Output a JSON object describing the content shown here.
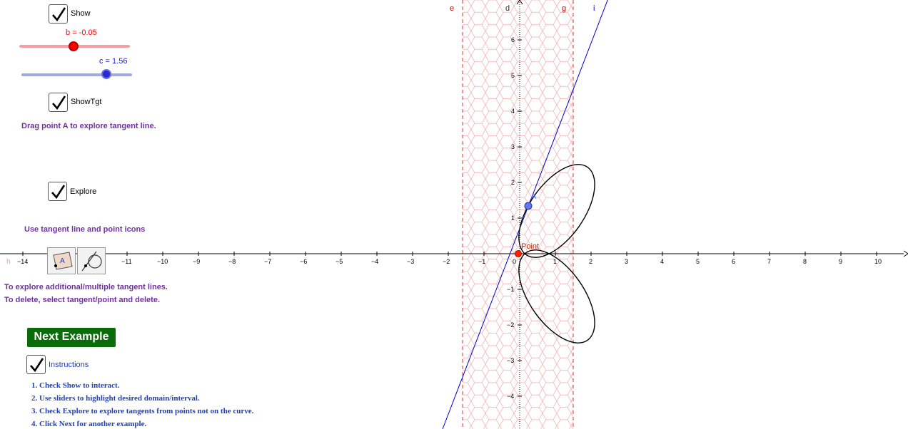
{
  "controls": {
    "show": {
      "label": "Show",
      "checked": true
    },
    "slider_b": {
      "label": "b = -0.05",
      "value": -0.05,
      "color": "#ff0000",
      "track_color": "#f4a0a0"
    },
    "slider_c": {
      "label": "c = 1.56",
      "value": 1.56,
      "color": "#2222cc",
      "track_color": "#a0a8e8"
    },
    "showtgt": {
      "label": "ShowTgt",
      "checked": true
    },
    "drag_hint": "Drag point A to explore tangent line.",
    "explore": {
      "label": "Explore",
      "checked": true
    },
    "icon_hint": "Use tangent line and point icons",
    "tools": [
      "point-tool-icon",
      "tangent-tool-icon"
    ],
    "note_line1": "To explore additional/multiple tangent lines.",
    "note_line2": "To delete, select tangent/point and delete.",
    "next_button": "Next Example",
    "instructions": {
      "label": "Instructions",
      "checked": true
    }
  },
  "instructions_list": [
    "1. Check Show to interact.",
    "2. Use sliders to highlight desired domain/interval.",
    "3. Check Explore to explore tangents from points not on the curve.",
    "4.  Click Next for another example."
  ],
  "graph": {
    "x_ticks": [
      "−14",
      "−11",
      "−10",
      "−9",
      "−8",
      "−7",
      "−6",
      "−5",
      "−4",
      "−3",
      "−2",
      "−1",
      "0",
      "1",
      "2",
      "3",
      "4",
      "5",
      "6",
      "7",
      "8",
      "9",
      "10"
    ],
    "y_ticks_pos": [
      "1",
      "2",
      "3",
      "4",
      "5",
      "6"
    ],
    "y_ticks_neg": [
      "−1",
      "−2",
      "−3",
      "−4"
    ],
    "x_axis_name": "h",
    "line_labels": {
      "e": "e",
      "d": "d",
      "g": "g",
      "i": "i"
    },
    "point_origin_label": "Point",
    "point_a_label": "A",
    "colors": {
      "region": "#e04040",
      "curve": "#000000",
      "tangent": "#0000cc",
      "axis": "#000000",
      "point": "#ff2200",
      "point_a": "#6677ee"
    }
  }
}
